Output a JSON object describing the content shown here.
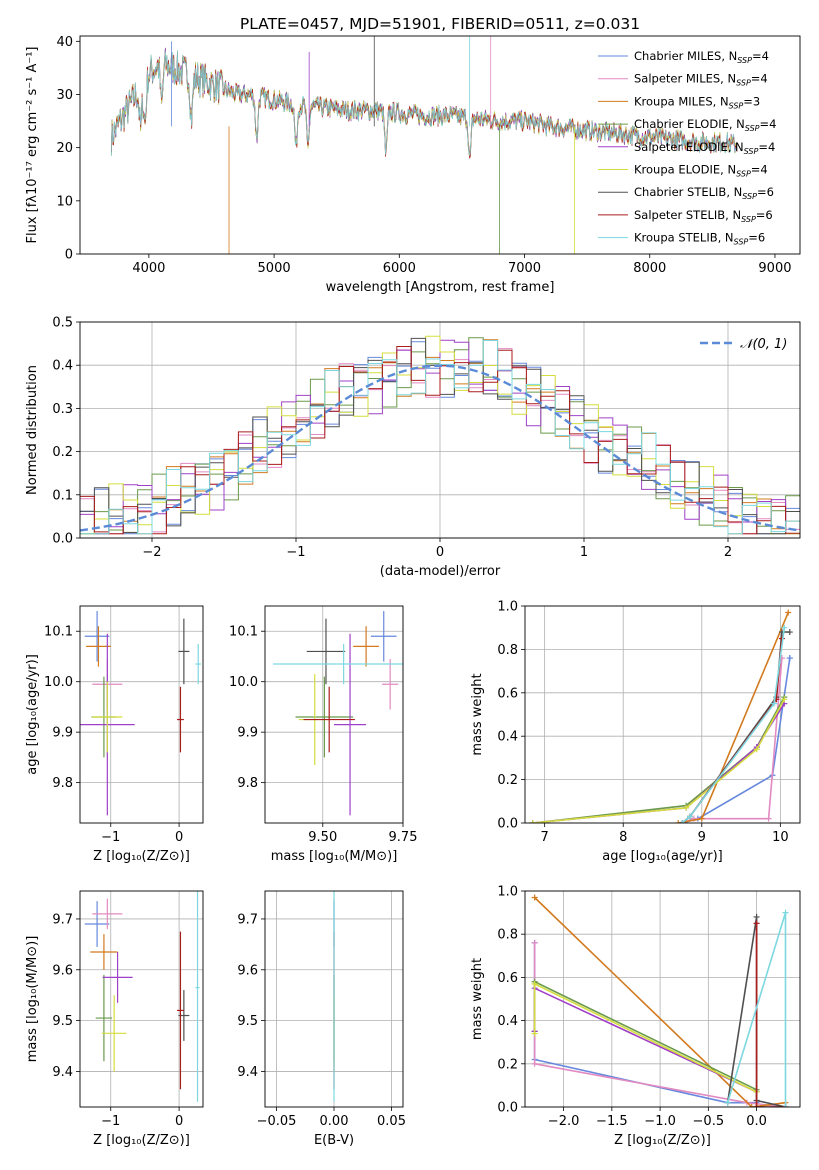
{
  "title": "PLATE=0457, MJD=51901, FIBERID=0511, z=0.031",
  "colors": {
    "c0": "#6688dd",
    "c1": "#e28ac2",
    "c2": "#d27a1e",
    "c3": "#6a9a4a",
    "c4": "#a040c8",
    "c5": "#d4dd3c",
    "c6": "#505050",
    "c7": "#aa1d1d",
    "c8": "#7cd8e0",
    "normal": "#5b8bd6",
    "data": "#888888"
  },
  "chart_data": [
    {
      "type": "line",
      "name": "spectrum",
      "xlabel": "wavelength [Angstrom, rest frame]",
      "ylabel": "Flux [fλ10⁻¹⁷ erg cm⁻² s⁻¹ A⁻¹]",
      "xlim": [
        3450,
        9200
      ],
      "ylim": [
        0,
        41
      ],
      "xticks": [
        4000,
        5000,
        6000,
        7000,
        8000,
        9000
      ],
      "yticks": [
        0,
        10,
        20,
        30,
        40
      ],
      "grid": false,
      "legend": "top-right",
      "continuum": {
        "x": [
          3700,
          3800,
          3900,
          4000,
          4100,
          4200,
          4300,
          4400,
          4500,
          4600,
          4700,
          4800,
          5000,
          5200,
          5400,
          5600,
          5800,
          6000,
          6200,
          6400,
          6600,
          6800,
          7000,
          7200,
          7400,
          7600,
          7800,
          8000,
          8200,
          8400,
          8600,
          8700
        ],
        "y": [
          22,
          26,
          30,
          34,
          36,
          35,
          34,
          33,
          32,
          31,
          30,
          30,
          29,
          28,
          27.5,
          27,
          27,
          26.5,
          26,
          26,
          25.5,
          25,
          25,
          24,
          23.5,
          23,
          22.5,
          22,
          21.5,
          21,
          21,
          20.5
        ]
      },
      "series": [
        {
          "label": "Chabrier MILES, N",
          "sub": "SSP",
          "suffix": "=4"
        },
        {
          "label": "Salpeter MILES, N",
          "sub": "SSP",
          "suffix": "=4"
        },
        {
          "label": "Kroupa MILES, N",
          "sub": "SSP",
          "suffix": "=3"
        },
        {
          "label": "Chabrier ELODIE, N",
          "sub": "SSP",
          "suffix": "=4"
        },
        {
          "label": "Salpeter ELODIE, N",
          "sub": "SSP",
          "suffix": "=4"
        },
        {
          "label": "Kroupa ELODIE, N",
          "sub": "SSP",
          "suffix": "=4"
        },
        {
          "label": "Chabrier STELIB, N",
          "sub": "SSP",
          "suffix": "=6"
        },
        {
          "label": "Salpeter STELIB, N",
          "sub": "SSP",
          "suffix": "=6"
        },
        {
          "label": "Kroupa STELIB, N",
          "sub": "SSP",
          "suffix": "=6"
        }
      ]
    },
    {
      "type": "line",
      "name": "residual-histogram",
      "xlabel": "(data-model)/error",
      "ylabel": "Normed distribution",
      "xlim": [
        -2.5,
        2.5
      ],
      "ylim": [
        0,
        0.5
      ],
      "xticks": [
        -2,
        -1,
        0,
        1,
        2
      ],
      "yticks": [
        0.0,
        0.1,
        0.2,
        0.3,
        0.4,
        0.5
      ],
      "grid": true,
      "legend": "top-right",
      "legend_label": "𝒩(0, 1)",
      "bins": [
        -2.5,
        -2.4,
        -2.3,
        -2.2,
        -2.1,
        -2.0,
        -1.9,
        -1.8,
        -1.7,
        -1.6,
        -1.5,
        -1.4,
        -1.3,
        -1.2,
        -1.1,
        -1.0,
        -0.9,
        -0.8,
        -0.7,
        -0.6,
        -0.5,
        -0.4,
        -0.3,
        -0.2,
        -0.1,
        0.0,
        0.1,
        0.2,
        0.3,
        0.4,
        0.5,
        0.6,
        0.7,
        0.8,
        0.9,
        1.0,
        1.1,
        1.2,
        1.3,
        1.4,
        1.5,
        1.6,
        1.7,
        1.8,
        1.9,
        2.0,
        2.1,
        2.2,
        2.3,
        2.4,
        2.5
      ]
    },
    {
      "type": "scatter",
      "name": "age-vs-Z",
      "xlabel": "Z [log₁₀(Z/Z⊙)]",
      "ylabel": "age  [log₁₀(age/yr)]",
      "xlim": [
        -1.45,
        0.35
      ],
      "ylim": [
        9.72,
        10.15
      ],
      "xticks": [
        -1,
        0
      ],
      "yticks": [
        9.8,
        9.9,
        10.0,
        10.1
      ],
      "points": [
        {
          "x": -1.2,
          "y": 10.09,
          "xerr": 0.18,
          "yerr": 0.05,
          "c": "c0"
        },
        {
          "x": -1.05,
          "y": 9.995,
          "xerr": 0.22,
          "yerr": 0.05,
          "c": "c1"
        },
        {
          "x": -1.18,
          "y": 10.07,
          "xerr": 0.18,
          "yerr": 0.04,
          "c": "c2"
        },
        {
          "x": -1.1,
          "y": 9.93,
          "xerr": 0.18,
          "yerr": 0.08,
          "c": "c3"
        },
        {
          "x": -1.05,
          "y": 9.915,
          "xerr": 0.4,
          "yerr": 0.18,
          "c": "c4"
        },
        {
          "x": -1.05,
          "y": 9.93,
          "xerr": 0.22,
          "yerr": 0.07,
          "c": "c5"
        },
        {
          "x": 0.07,
          "y": 10.06,
          "xerr": 0.08,
          "yerr": 0.065,
          "c": "c6"
        },
        {
          "x": 0.02,
          "y": 9.925,
          "xerr": 0.05,
          "yerr": 0.065,
          "c": "c7"
        },
        {
          "x": 0.28,
          "y": 10.035,
          "xerr": 0.04,
          "yerr": 0.04,
          "c": "c8"
        }
      ]
    },
    {
      "type": "scatter",
      "name": "age-vs-mass",
      "xlabel": "mass [log₁₀(M/M⊙)]",
      "ylabel": "",
      "xlim": [
        9.32,
        9.75
      ],
      "ylim": [
        9.72,
        10.15
      ],
      "xticks": [
        9.5,
        9.75
      ],
      "yticks": [
        9.8,
        9.9,
        10.0,
        10.1
      ],
      "points": [
        {
          "x": 9.69,
          "y": 10.09,
          "xerr": 0.04,
          "yerr": 0.05,
          "c": "c0"
        },
        {
          "x": 9.71,
          "y": 9.995,
          "xerr": 0.025,
          "yerr": 0.05,
          "c": "c1"
        },
        {
          "x": 9.635,
          "y": 10.07,
          "xerr": 0.04,
          "yerr": 0.04,
          "c": "c2"
        },
        {
          "x": 9.505,
          "y": 9.93,
          "xerr": 0.09,
          "yerr": 0.08,
          "c": "c3"
        },
        {
          "x": 9.585,
          "y": 9.915,
          "xerr": 0.05,
          "yerr": 0.18,
          "c": "c4"
        },
        {
          "x": 9.475,
          "y": 9.925,
          "xerr": 0.05,
          "yerr": 0.09,
          "c": "c5"
        },
        {
          "x": 9.51,
          "y": 10.06,
          "xerr": 0.06,
          "yerr": 0.065,
          "c": "c6"
        },
        {
          "x": 9.52,
          "y": 9.925,
          "xerr": 0.08,
          "yerr": 0.065,
          "c": "c7"
        },
        {
          "x": 9.565,
          "y": 10.035,
          "xerr": 0.22,
          "yerr": 0.04,
          "c": "c8"
        }
      ]
    },
    {
      "type": "line",
      "name": "weight-vs-age",
      "xlabel": "age  [log₁₀(age/yr)]",
      "ylabel": "mass weight",
      "xlim": [
        6.75,
        10.25
      ],
      "ylim": [
        0,
        1.0
      ],
      "xticks": [
        7,
        8,
        9,
        10
      ],
      "yticks": [
        0.0,
        0.2,
        0.4,
        0.6,
        0.8,
        1.0
      ],
      "series": [
        {
          "c": "c0",
          "x": [
            8.75,
            8.95,
            9.9,
            10.12,
            10.12
          ],
          "y": [
            0.0,
            0.02,
            0.22,
            0.76,
            0.76
          ]
        },
        {
          "c": "c1",
          "x": [
            8.75,
            8.9,
            9.85,
            10.02,
            10.02
          ],
          "y": [
            0.0,
            0.02,
            0.02,
            0.76,
            0.76
          ]
        },
        {
          "c": "c2",
          "x": [
            8.7,
            9.0,
            10.1
          ],
          "y": [
            0.0,
            0.02,
            0.97
          ]
        },
        {
          "c": "c3",
          "x": [
            6.85,
            8.8,
            9.7,
            10.05
          ],
          "y": [
            0.0,
            0.08,
            0.35,
            0.58
          ]
        },
        {
          "c": "c4",
          "x": [
            6.85,
            8.8,
            9.7,
            10.05
          ],
          "y": [
            0.0,
            0.07,
            0.35,
            0.55
          ]
        },
        {
          "c": "c5",
          "x": [
            6.85,
            8.8,
            9.7,
            10.05
          ],
          "y": [
            0.0,
            0.07,
            0.34,
            0.57
          ]
        },
        {
          "c": "c6",
          "x": [
            8.75,
            8.85,
            9.95,
            10.02,
            10.12
          ],
          "y": [
            0.0,
            0.03,
            0.58,
            0.88,
            0.88
          ]
        },
        {
          "c": "c7",
          "x": [
            8.75,
            8.85,
            9.95,
            10.02
          ],
          "y": [
            0.0,
            0.03,
            0.57,
            0.85
          ]
        },
        {
          "c": "c8",
          "x": [
            8.75,
            8.85,
            9.92,
            10.05
          ],
          "y": [
            0.0,
            0.03,
            0.55,
            0.9
          ]
        }
      ]
    },
    {
      "type": "scatter",
      "name": "mass-vs-Z",
      "xlabel": "Z [log₁₀(Z/Z⊙)]",
      "ylabel": "mass [log₁₀(M/M⊙)]",
      "xlim": [
        -1.45,
        0.35
      ],
      "ylim": [
        9.33,
        9.755
      ],
      "xticks": [
        -1,
        0
      ],
      "yticks": [
        9.4,
        9.5,
        9.6,
        9.7
      ],
      "points": [
        {
          "x": -1.2,
          "y": 9.69,
          "xerr": 0.18,
          "yerr": 0.045,
          "c": "c0"
        },
        {
          "x": -1.05,
          "y": 9.71,
          "xerr": 0.22,
          "yerr": 0.03,
          "c": "c1"
        },
        {
          "x": -1.1,
          "y": 9.635,
          "xerr": 0.2,
          "yerr": 0.035,
          "c": "c2"
        },
        {
          "x": -1.1,
          "y": 9.505,
          "xerr": 0.12,
          "yerr": 0.085,
          "c": "c3"
        },
        {
          "x": -0.9,
          "y": 9.585,
          "xerr": 0.22,
          "yerr": 0.05,
          "c": "c4"
        },
        {
          "x": -0.95,
          "y": 9.475,
          "xerr": 0.18,
          "yerr": 0.075,
          "c": "c5"
        },
        {
          "x": 0.07,
          "y": 9.51,
          "xerr": 0.08,
          "yerr": 0.05,
          "c": "c6"
        },
        {
          "x": 0.02,
          "y": 9.52,
          "xerr": 0.05,
          "yerr": 0.155,
          "c": "c7"
        },
        {
          "x": 0.27,
          "y": 9.565,
          "xerr": 0.03,
          "yerr": 0.225,
          "c": "c8"
        }
      ]
    },
    {
      "type": "scatter",
      "name": "mass-vs-EBV",
      "xlabel": "E(B-V)",
      "ylabel": "",
      "xlim": [
        -0.06,
        0.06
      ],
      "ylim": [
        9.33,
        9.755
      ],
      "xticks": [
        -0.05,
        0.0,
        0.05
      ],
      "yticks": [
        9.4,
        9.5,
        9.6,
        9.7
      ],
      "points": [
        {
          "x": 0.0,
          "y": 9.69,
          "xerr": 0.0,
          "yerr": 0.045,
          "c": "c0"
        },
        {
          "x": 0.0,
          "y": 9.71,
          "xerr": 0.0,
          "yerr": 0.03,
          "c": "c1"
        },
        {
          "x": 0.0,
          "y": 9.505,
          "xerr": 0.0,
          "yerr": 0.085,
          "c": "c3"
        },
        {
          "x": 0.0,
          "y": 9.475,
          "xerr": 0.0,
          "yerr": 0.075,
          "c": "c5"
        },
        {
          "x": 0.0,
          "y": 9.52,
          "xerr": 0.0,
          "yerr": 0.155,
          "c": "c7"
        },
        {
          "x": 0.0,
          "y": 9.565,
          "xerr": 0.0,
          "yerr": 0.225,
          "c": "c8"
        }
      ]
    },
    {
      "type": "line",
      "name": "weight-vs-Z",
      "xlabel": "Z [log₁₀(Z/Z⊙)]",
      "ylabel": "mass weight",
      "xlim": [
        -2.4,
        0.45
      ],
      "ylim": [
        0,
        1.0
      ],
      "xticks": [
        -2.0,
        -1.5,
        -1.0,
        -0.5,
        0.0
      ],
      "yticks": [
        0.0,
        0.2,
        0.4,
        0.6,
        0.8,
        1.0
      ],
      "series": [
        {
          "c": "c0",
          "x": [
            -2.3,
            -2.3,
            -0.3,
            0.0,
            0.0
          ],
          "y": [
            0.76,
            0.22,
            0.02,
            0.02,
            0.0
          ]
        },
        {
          "c": "c1",
          "x": [
            -2.3,
            -2.3,
            -0.1,
            0.3
          ],
          "y": [
            0.76,
            0.2,
            0.02,
            0.0
          ]
        },
        {
          "c": "c2",
          "x": [
            -2.3,
            -0.05,
            0.3
          ],
          "y": [
            0.97,
            0.0,
            0.02
          ]
        },
        {
          "c": "c3",
          "x": [
            -2.3,
            -2.3,
            0.0,
            0.0
          ],
          "y": [
            0.35,
            0.58,
            0.08,
            0.0
          ]
        },
        {
          "c": "c4",
          "x": [
            -2.3,
            -2.3,
            0.0,
            0.0
          ],
          "y": [
            0.35,
            0.55,
            0.07,
            0.0
          ]
        },
        {
          "c": "c5",
          "x": [
            -2.3,
            -2.3,
            0.0,
            0.0
          ],
          "y": [
            0.34,
            0.57,
            0.07,
            0.0
          ]
        },
        {
          "c": "c6",
          "x": [
            -0.3,
            0.0,
            0.0,
            0.3
          ],
          "y": [
            0.02,
            0.88,
            0.03,
            0.0
          ]
        },
        {
          "c": "c7",
          "x": [
            0.0,
            0.0,
            0.3
          ],
          "y": [
            0.85,
            0.0,
            0.0
          ]
        },
        {
          "c": "c8",
          "x": [
            -0.3,
            0.3,
            0.3
          ],
          "y": [
            0.02,
            0.9,
            0.0
          ]
        }
      ]
    }
  ]
}
